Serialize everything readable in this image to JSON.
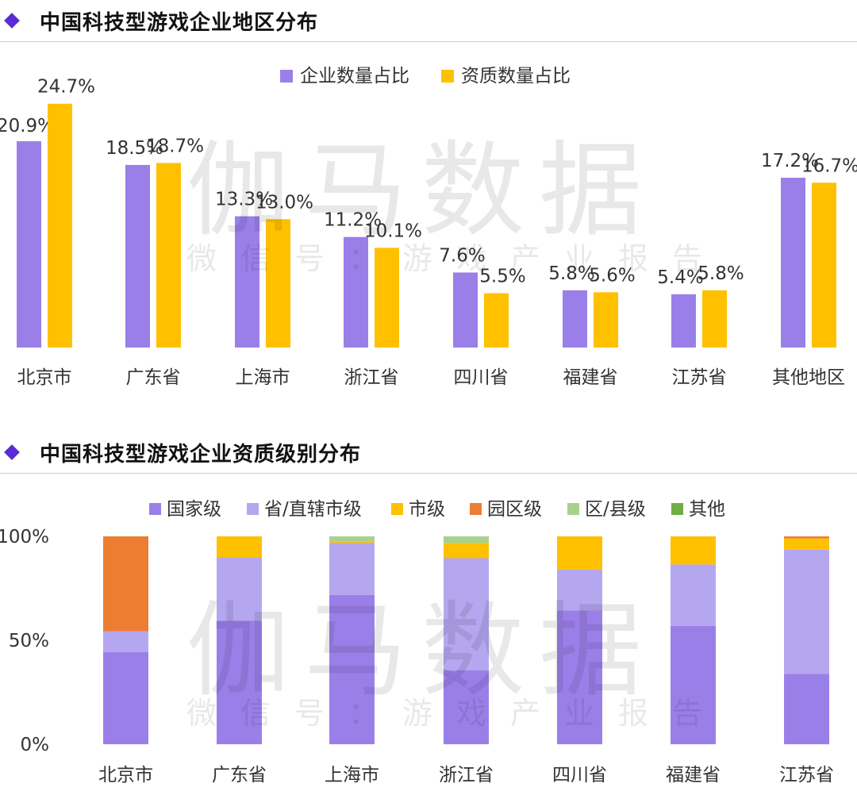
{
  "section1": {
    "title": "中国科技型游戏企业地区分布"
  },
  "section2": {
    "title": "中国科技型游戏企业资质级别分布"
  },
  "watermark": {
    "brand": "伽马数据",
    "subtitle": "微信号：游戏产业报告"
  },
  "colors": {
    "accent": "#5b2bd6",
    "purple": "#9b7fe8",
    "gold": "#ffc000",
    "lavender": "#b4a7ef",
    "orange": "#ed7d31",
    "light_green": "#a9d18e",
    "green": "#70ad47"
  },
  "chart_data": [
    {
      "type": "bar",
      "title": "中国科技型游戏企业地区分布",
      "categories": [
        "北京市",
        "广东省",
        "上海市",
        "浙江省",
        "四川省",
        "福建省",
        "江苏省",
        "其他地区"
      ],
      "series": [
        {
          "name": "企业数量占比",
          "values": [
            20.9,
            18.5,
            13.3,
            11.2,
            7.6,
            5.8,
            5.4,
            17.2
          ],
          "labels": [
            "20.9%",
            "18.5%",
            "13.3%",
            "11.2%",
            "7.6%",
            "5.8%",
            "5.4%",
            "17.2%"
          ]
        },
        {
          "name": "资质数量占比",
          "values": [
            24.7,
            18.7,
            13.0,
            10.1,
            5.5,
            5.6,
            5.8,
            16.7
          ],
          "labels": [
            "24.7%",
            "18.7%",
            "13.0%",
            "10.1%",
            "5.5%",
            "5.6%",
            "5.8%",
            "16.7%"
          ]
        }
      ],
      "ylim": [
        0,
        25
      ],
      "legend": "top-center",
      "grid": false
    },
    {
      "type": "bar",
      "stacked": true,
      "percent": true,
      "title": "中国科技型游戏企业资质级别分布",
      "categories": [
        "北京市",
        "广东省",
        "上海市",
        "浙江省",
        "四川省",
        "福建省",
        "江苏省"
      ],
      "series": [
        {
          "name": "国家级",
          "values": [
            44.4,
            59.5,
            71.8,
            35.5,
            64.3,
            56.9,
            33.9
          ]
        },
        {
          "name": "省/直辖市级",
          "values": [
            10.0,
            30.4,
            25.1,
            54.0,
            19.8,
            29.6,
            59.7
          ]
        },
        {
          "name": "市级",
          "values": [
            0.0,
            10.1,
            0.5,
            7.3,
            15.9,
            13.5,
            5.4
          ]
        },
        {
          "name": "园区级",
          "values": [
            45.6,
            0.0,
            0.0,
            0.0,
            0.0,
            0.0,
            1.0
          ]
        },
        {
          "name": "区/县级",
          "values": [
            0.0,
            0.0,
            2.6,
            3.2,
            0.0,
            0.0,
            0.0
          ]
        },
        {
          "name": "其他",
          "values": [
            0.0,
            0.0,
            0.0,
            0.0,
            0.0,
            0.0,
            0.0
          ]
        }
      ],
      "ytick_labels": [
        "0%",
        "50%",
        "100%"
      ],
      "ylim": [
        0,
        100
      ],
      "legend": "top-center",
      "grid": false
    }
  ]
}
